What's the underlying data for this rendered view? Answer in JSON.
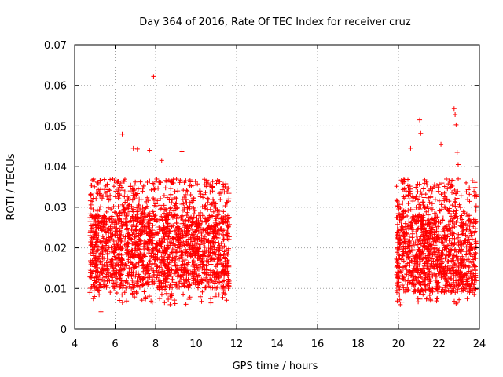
{
  "chart_data": {
    "type": "scatter",
    "title": "Day 364 of 2016, Rate Of TEC Index for receiver cruz",
    "xlabel": "GPS time / hours",
    "ylabel": "ROTI / TECUs",
    "xlim": [
      4,
      24
    ],
    "ylim": [
      0,
      0.07
    ],
    "x_ticks": [
      4,
      6,
      8,
      10,
      12,
      14,
      16,
      18,
      20,
      22,
      24
    ],
    "x_tick_labels": [
      "4",
      "6",
      "8",
      "10",
      "12",
      "14",
      "16",
      "18",
      "20",
      "22",
      "24"
    ],
    "y_ticks": [
      0,
      0.01,
      0.02,
      0.03,
      0.04,
      0.05,
      0.06,
      0.07
    ],
    "y_tick_labels": [
      "0",
      "0.01",
      "0.02",
      "0.03",
      "0.04",
      "0.05",
      "0.06",
      "0.07"
    ],
    "grid": true,
    "marker": "+",
    "series": [
      {
        "name": "ROTI",
        "color": "#ff0000",
        "segments": [
          {
            "x_start": 4.75,
            "x_end": 11.65,
            "typical_min": 0.01,
            "typical_max": 0.028
          },
          {
            "x_start": 19.9,
            "x_end": 23.85,
            "typical_min": 0.009,
            "typical_max": 0.028
          }
        ],
        "notable_points": [
          {
            "x": 7.9,
            "y": 0.0622
          },
          {
            "x": 6.35,
            "y": 0.048
          },
          {
            "x": 5.3,
            "y": 0.0043
          },
          {
            "x": 6.9,
            "y": 0.0445
          },
          {
            "x": 7.1,
            "y": 0.0443
          },
          {
            "x": 7.7,
            "y": 0.044
          },
          {
            "x": 9.3,
            "y": 0.0438
          },
          {
            "x": 8.3,
            "y": 0.0415
          },
          {
            "x": 21.05,
            "y": 0.0515
          },
          {
            "x": 21.1,
            "y": 0.0482
          },
          {
            "x": 22.75,
            "y": 0.0543
          },
          {
            "x": 22.8,
            "y": 0.0528
          },
          {
            "x": 22.85,
            "y": 0.0503
          },
          {
            "x": 20.6,
            "y": 0.0445
          },
          {
            "x": 22.1,
            "y": 0.0455
          },
          {
            "x": 22.9,
            "y": 0.0435
          },
          {
            "x": 22.95,
            "y": 0.0405
          },
          {
            "x": 23.4,
            "y": 0.0075
          },
          {
            "x": 21.6,
            "y": 0.007
          }
        ]
      }
    ]
  }
}
